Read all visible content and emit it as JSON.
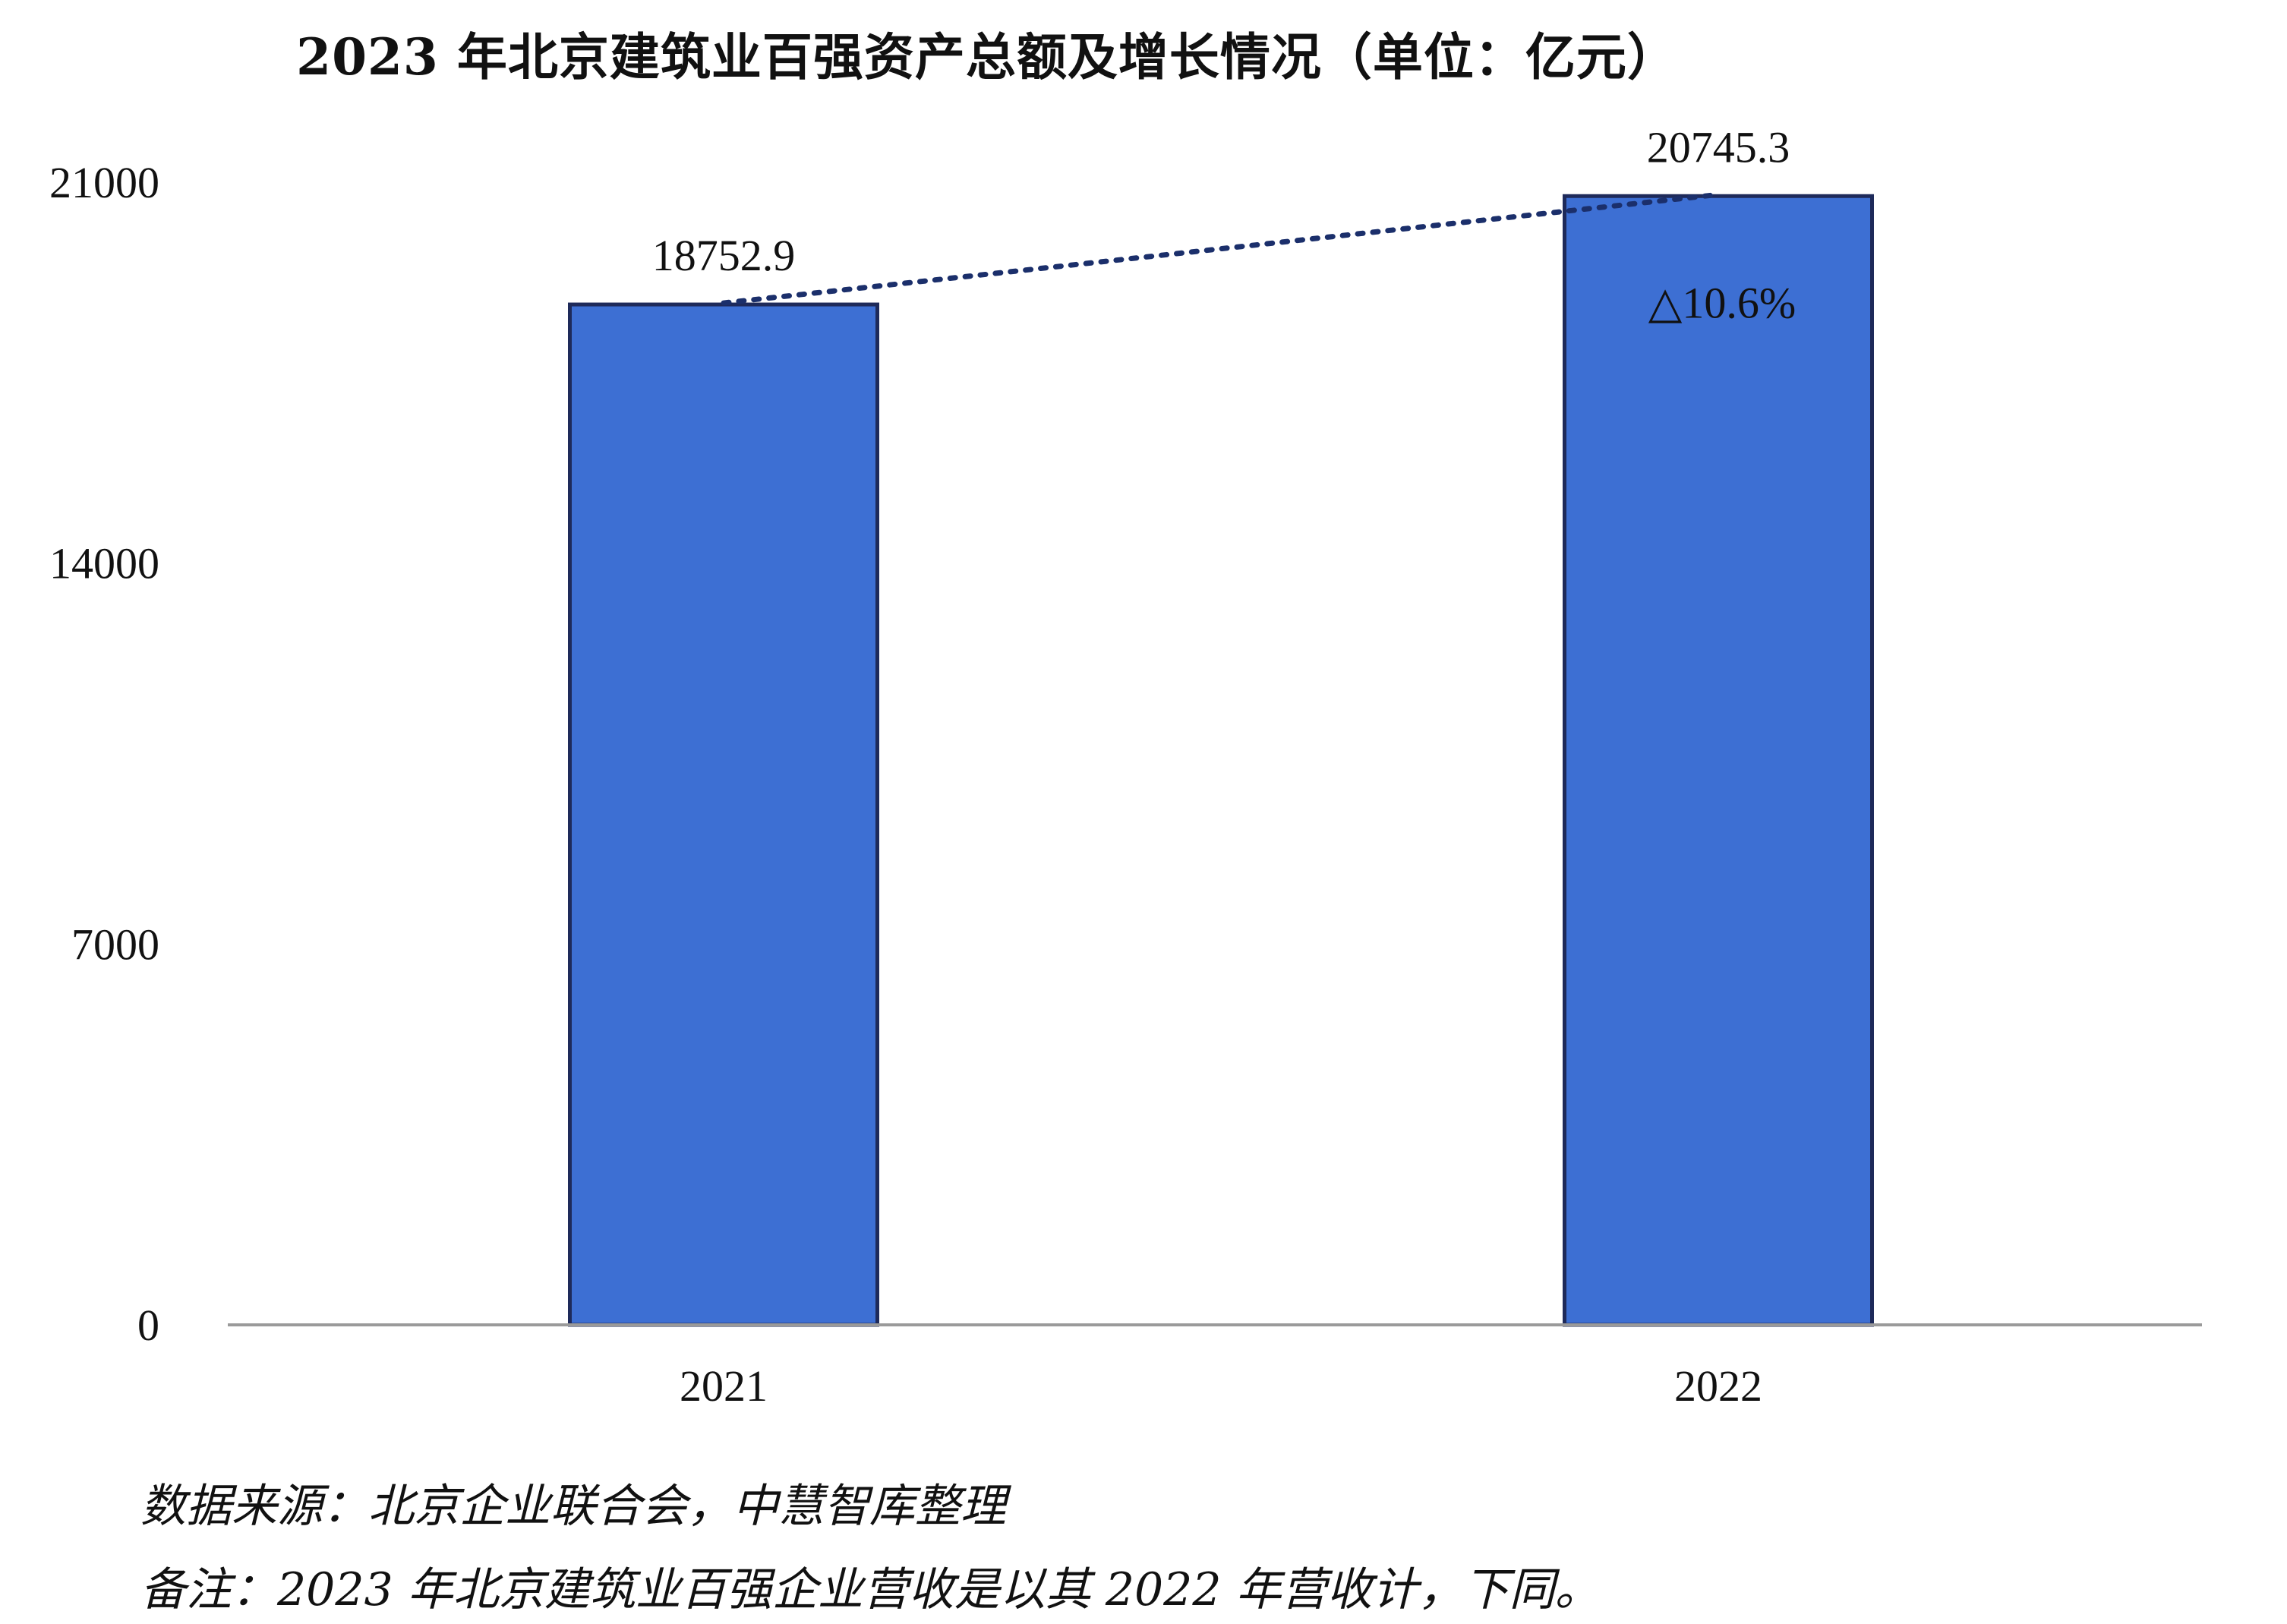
{
  "chart_data": {
    "type": "bar",
    "title": "2023 年北京建筑业百强资产总额及增长情况（单位：亿元）",
    "xlabel": "",
    "ylabel": "",
    "categories": [
      "2021",
      "2022"
    ],
    "values": [
      18752.9,
      20745.3
    ],
    "value_labels": [
      "18752.9",
      "20745.3"
    ],
    "ylim": [
      0,
      21000
    ],
    "yticks": [
      0,
      7000,
      14000,
      21000
    ],
    "ytick_labels": [
      "0",
      "7000",
      "14000",
      "21000"
    ],
    "growth_label": "△10.6%",
    "trend_line": "dotted",
    "grid": false,
    "legend": "none",
    "bar_color": "#3D6FD3",
    "bar_edge_color": "#1E2A5A"
  },
  "notes": {
    "source": "数据来源：北京企业联合会，中慧智库整理",
    "remark": "备注：2023 年北京建筑业百强企业营收是以其 2022 年营收计，下同。"
  }
}
